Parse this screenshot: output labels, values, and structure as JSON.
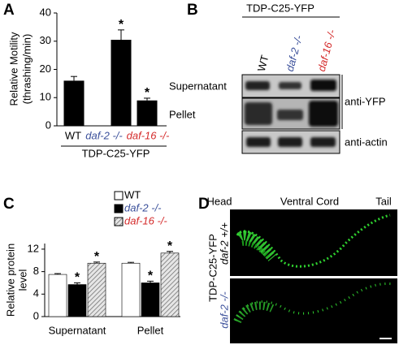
{
  "panels": {
    "a": "A",
    "b": "B",
    "c": "C",
    "d": "D"
  },
  "chart_data": [
    {
      "type": "bar",
      "panel": "A",
      "y_label": [
        "Relative Motility",
        "(thrashing/min)"
      ],
      "categories": [
        "WT",
        "daf-2 -/-",
        "daf-16 -/-"
      ],
      "category_colors": [
        "#000000",
        "#3a4f9a",
        "#d42a2a"
      ],
      "category_italic": [
        false,
        true,
        true
      ],
      "values": [
        16,
        30.5,
        9
      ],
      "errors": [
        1.5,
        3.5,
        0.8
      ],
      "significance": [
        null,
        "*",
        "*"
      ],
      "color": "#000000",
      "group_label": "TDP-C25-YFP",
      "ylim": [
        0,
        40
      ],
      "yticks": [
        0,
        10,
        20,
        30,
        40
      ]
    },
    {
      "type": "grouped-bar",
      "panel": "C",
      "y_label": [
        "Relative protein",
        "level"
      ],
      "categories": [
        "Supernatant",
        "Pellet"
      ],
      "series": [
        {
          "name": "WT",
          "color": "#ffffff",
          "label_color": "#000000",
          "italic": false,
          "hatch": false,
          "values": [
            7.5,
            9.5
          ],
          "errors": [
            0.15,
            0.15
          ],
          "significance": [
            null,
            null
          ]
        },
        {
          "name": "daf-2 -/-",
          "color": "#000000",
          "label_color": "#3a4f9a",
          "italic": true,
          "hatch": false,
          "values": [
            5.7,
            6.0
          ],
          "errors": [
            0.3,
            0.3
          ],
          "significance": [
            "*",
            "*"
          ]
        },
        {
          "name": "daf-16 -/-",
          "color": "#d9d9d9",
          "label_color": "#d42a2a",
          "italic": true,
          "hatch": true,
          "values": [
            9.5,
            11.3
          ],
          "errors": [
            0.2,
            0.3
          ],
          "significance": [
            "*",
            "*"
          ]
        }
      ],
      "ylim": [
        0,
        13
      ],
      "yticks": [
        0,
        4,
        8,
        12
      ]
    }
  ],
  "blot": {
    "header": "TDP-C25-YFP",
    "lanes": [
      {
        "label": "WT",
        "color": "#000000",
        "italic": false
      },
      {
        "label": "daf-2 -/-",
        "color": "#3a4f9a",
        "italic": true
      },
      {
        "label": "daf-16 -/-",
        "color": "#d42a2a",
        "italic": true
      }
    ],
    "rows": [
      "Supernatant",
      "Pellet"
    ],
    "antibodies": [
      "anti-YFP",
      "anti-actin"
    ]
  },
  "microscopy": {
    "regions": [
      "Head",
      "Ventral Cord",
      "Tail"
    ],
    "strain": "TDP-C25-YFP",
    "genotypes": [
      "daf-2 +/+",
      "daf-2 -/-"
    ]
  }
}
